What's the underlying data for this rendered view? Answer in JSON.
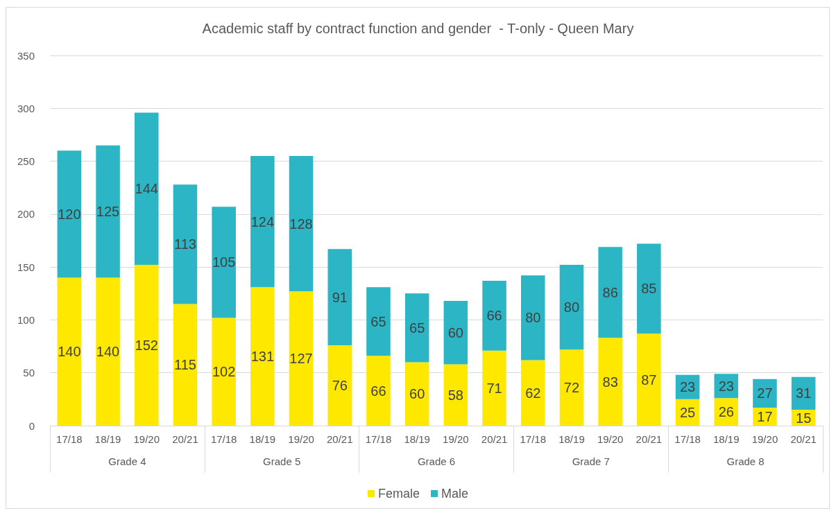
{
  "chart_data": {
    "type": "bar",
    "title": "Academic staff by contract function and gender  - T-only - Queen Mary",
    "categories": [
      "17/18",
      "18/19",
      "19/20",
      "20/21",
      "17/18",
      "18/19",
      "19/20",
      "20/21",
      "17/18",
      "18/19",
      "19/20",
      "20/21",
      "17/18",
      "18/19",
      "19/20",
      "20/21",
      "17/18",
      "18/19",
      "19/20",
      "20/21"
    ],
    "annotations": [
      "Grade 4",
      "Grade 5",
      "Grade 6",
      "Grade 7",
      "Grade 8"
    ],
    "series": [
      {
        "name": "Female",
        "color": "#ffe800",
        "values": [
          140,
          140,
          152,
          115,
          102,
          131,
          127,
          76,
          66,
          60,
          58,
          71,
          62,
          72,
          83,
          87,
          25,
          26,
          17,
          15
        ]
      },
      {
        "name": "Male",
        "color": "#2cb5c5",
        "values": [
          120,
          125,
          144,
          113,
          105,
          124,
          128,
          91,
          65,
          65,
          60,
          66,
          80,
          80,
          86,
          85,
          23,
          23,
          27,
          31
        ]
      }
    ],
    "stacked": true,
    "data_labels": true,
    "ylim": [
      0,
      350
    ],
    "yticks": [
      0,
      50,
      100,
      150,
      200,
      250,
      300,
      350
    ],
    "grid": "y",
    "legend": "bottom"
  }
}
